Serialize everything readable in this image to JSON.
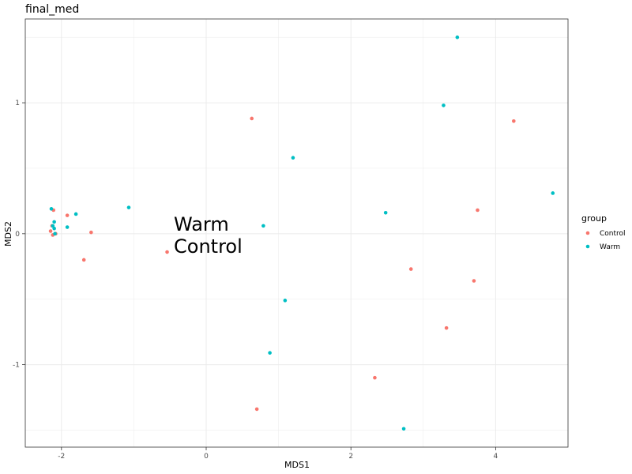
{
  "chart_data": {
    "type": "scatter",
    "title": "final_med",
    "xlabel": "MDS1",
    "ylabel": "MDS2",
    "xlim": [
      -2.5,
      5.0
    ],
    "ylim": [
      -1.63,
      1.64
    ],
    "x_ticks": [
      -2,
      0,
      2,
      4
    ],
    "x_tick_labels": [
      "-2",
      "0",
      "2",
      "4"
    ],
    "y_ticks": [
      -1,
      0,
      1
    ],
    "y_tick_labels": [
      "-1",
      "0",
      "1"
    ],
    "grid": true,
    "legend": {
      "title": "group",
      "position": "right",
      "entries": [
        "Control",
        "Warm"
      ]
    },
    "annotations": [
      "Warm",
      "Control"
    ],
    "series": [
      {
        "name": "Control",
        "color": "#F8766D",
        "points": [
          {
            "x": 0.63,
            "y": 0.88
          },
          {
            "x": 4.25,
            "y": 0.86
          },
          {
            "x": 3.75,
            "y": 0.18
          },
          {
            "x": 2.83,
            "y": -0.27
          },
          {
            "x": 3.7,
            "y": -0.36
          },
          {
            "x": 3.32,
            "y": -0.72
          },
          {
            "x": 2.33,
            "y": -1.1
          },
          {
            "x": 0.7,
            "y": -1.34
          },
          {
            "x": -0.54,
            "y": -0.14
          },
          {
            "x": -1.59,
            "y": 0.01
          },
          {
            "x": -1.69,
            "y": -0.2
          },
          {
            "x": -1.92,
            "y": 0.14
          },
          {
            "x": -2.11,
            "y": 0.18
          },
          {
            "x": -2.13,
            "y": 0.06
          },
          {
            "x": -2.15,
            "y": 0.02
          },
          {
            "x": -2.12,
            "y": -0.01
          },
          {
            "x": -2.08,
            "y": 0.0
          }
        ]
      },
      {
        "name": "Warm",
        "color": "#00BFC4",
        "points": [
          {
            "x": 3.47,
            "y": 1.5
          },
          {
            "x": 3.28,
            "y": 0.98
          },
          {
            "x": 1.2,
            "y": 0.58
          },
          {
            "x": 4.79,
            "y": 0.31
          },
          {
            "x": 2.48,
            "y": 0.16
          },
          {
            "x": 0.79,
            "y": 0.06
          },
          {
            "x": 1.09,
            "y": -0.51
          },
          {
            "x": 0.88,
            "y": -0.91
          },
          {
            "x": 2.73,
            "y": -1.49
          },
          {
            "x": -1.07,
            "y": 0.2
          },
          {
            "x": -1.8,
            "y": 0.15
          },
          {
            "x": -1.92,
            "y": 0.05
          },
          {
            "x": -2.14,
            "y": 0.19
          },
          {
            "x": -2.1,
            "y": 0.09
          },
          {
            "x": -2.12,
            "y": 0.06
          },
          {
            "x": -2.1,
            "y": 0.04
          },
          {
            "x": -2.09,
            "y": 0.0
          }
        ]
      }
    ]
  }
}
